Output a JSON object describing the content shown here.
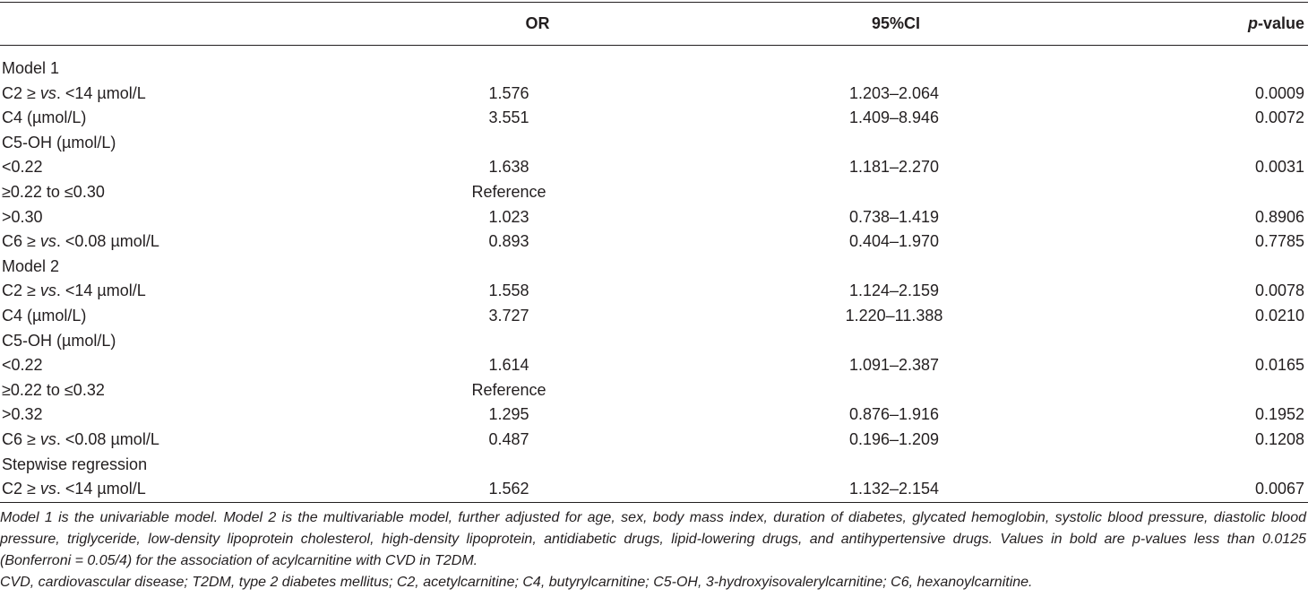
{
  "table": {
    "headers": {
      "or": "OR",
      "ci": "95%CI",
      "p_italic": "p",
      "p_rest": "-value"
    },
    "rows": [
      {
        "label_pre": "Model 1",
        "label_it": "",
        "label_post": "",
        "or": "",
        "ci": "",
        "p": ""
      },
      {
        "label_pre": "C2 ≥ ",
        "label_it": "vs",
        "label_post": ". <14 µmol/L",
        "or": "1.576",
        "ci": "1.203–2.064",
        "p": "0.0009"
      },
      {
        "label_pre": "C4 (µmol/L)",
        "label_it": "",
        "label_post": "",
        "or": "3.551",
        "ci": "1.409–8.946",
        "p": "0.0072"
      },
      {
        "label_pre": "C5-OH (µmol/L)",
        "label_it": "",
        "label_post": "",
        "or": "",
        "ci": "",
        "p": ""
      },
      {
        "label_pre": "<0.22",
        "label_it": "",
        "label_post": "",
        "or": "1.638",
        "ci": "1.181–2.270",
        "p": "0.0031"
      },
      {
        "label_pre": "≥0.22 to ≤0.30",
        "label_it": "",
        "label_post": "",
        "or": "Reference",
        "ci": "",
        "p": ""
      },
      {
        "label_pre": ">0.30",
        "label_it": "",
        "label_post": "",
        "or": "1.023",
        "ci": "0.738–1.419",
        "p": "0.8906"
      },
      {
        "label_pre": "C6 ≥ ",
        "label_it": "vs",
        "label_post": ". <0.08 µmol/L",
        "or": "0.893",
        "ci": "0.404–1.970",
        "p": "0.7785"
      },
      {
        "label_pre": "Model 2",
        "label_it": "",
        "label_post": "",
        "or": "",
        "ci": "",
        "p": ""
      },
      {
        "label_pre": "C2 ≥ ",
        "label_it": "vs",
        "label_post": ". <14 µmol/L",
        "or": "1.558",
        "ci": "1.124–2.159",
        "p": "0.0078"
      },
      {
        "label_pre": "C4 (µmol/L)",
        "label_it": "",
        "label_post": "",
        "or": "3.727",
        "ci": "1.220–11.388",
        "p": "0.0210"
      },
      {
        "label_pre": "C5-OH (µmol/L)",
        "label_it": "",
        "label_post": "",
        "or": "",
        "ci": "",
        "p": ""
      },
      {
        "label_pre": "<0.22",
        "label_it": "",
        "label_post": "",
        "or": "1.614",
        "ci": "1.091–2.387",
        "p": "0.0165"
      },
      {
        "label_pre": "≥0.22 to ≤0.32",
        "label_it": "",
        "label_post": "",
        "or": "Reference",
        "ci": "",
        "p": ""
      },
      {
        "label_pre": ">0.32",
        "label_it": "",
        "label_post": "",
        "or": "1.295",
        "ci": "0.876–1.916",
        "p": "0.1952"
      },
      {
        "label_pre": "C6 ≥ ",
        "label_it": "vs",
        "label_post": ". <0.08 µmol/L",
        "or": "0.487",
        "ci": "0.196–1.209",
        "p": "0.1208"
      },
      {
        "label_pre": "Stepwise regression",
        "label_it": "",
        "label_post": "",
        "or": "",
        "ci": "",
        "p": ""
      },
      {
        "label_pre": "C2 ≥ ",
        "label_it": "vs",
        "label_post": ". <14 µmol/L",
        "or": "1.562",
        "ci": "1.132–2.154",
        "p": "0.0067"
      }
    ]
  },
  "footnotes": {
    "note1": "Model 1 is the univariable model. Model 2 is the multivariable model, further adjusted for age, sex, body mass index, duration of diabetes, glycated hemoglobin, systolic blood pressure, diastolic blood pressure, triglyceride, low-density lipoprotein cholesterol, high-density lipoprotein, antidiabetic drugs, lipid-lowering drugs, and antihypertensive drugs. Values in bold are p-values less than 0.0125 (Bonferroni = 0.05/4) for the association of acylcarnitine with CVD in T2DM.",
    "note2": "CVD, cardiovascular disease; T2DM, type 2 diabetes mellitus; C2, acetylcarnitine; C4, butyrylcarnitine; C5-OH, 3-hydroxyisovalerylcarnitine; C6, hexanoylcarnitine."
  }
}
